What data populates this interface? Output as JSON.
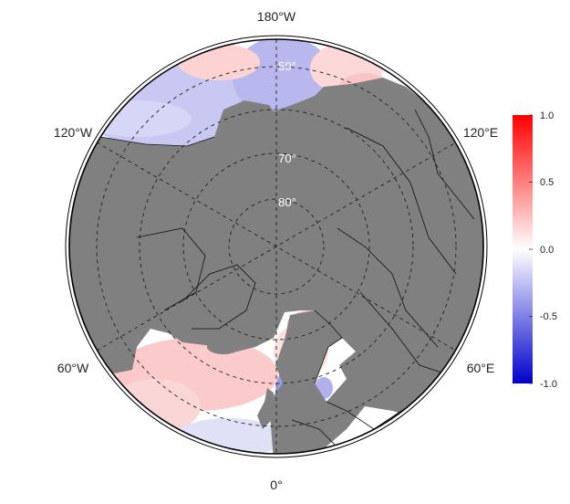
{
  "map": {
    "projection": "north-polar-stereographic",
    "longitude_labels": {
      "top": "180°W",
      "upper_left": "120°W",
      "upper_right": "120°E",
      "lower_left": "60°W",
      "lower_right": "60°E",
      "bottom": "0°"
    },
    "latitude_labels": [
      "50°",
      "70°",
      "80°"
    ],
    "colors": {
      "land": "#808080",
      "frame": "#000000",
      "graticule": "#222222",
      "positive": "#ff0000",
      "neutral": "#ffffff",
      "negative": "#0000ff"
    }
  },
  "colorbar": {
    "min": -1.0,
    "max": 1.0,
    "ticks": [
      "1.0",
      "0.5",
      "0.0",
      "-0.5",
      "-1.0"
    ]
  }
}
